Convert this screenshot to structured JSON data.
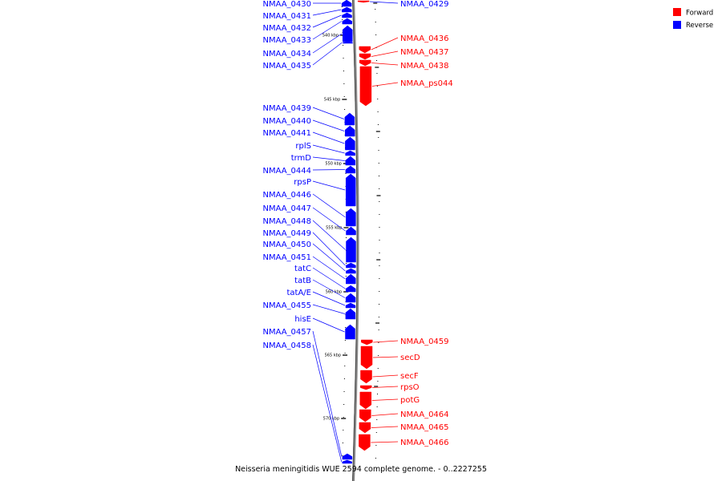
{
  "colors": {
    "forward": "#ff0000",
    "reverse": "#0000ff"
  },
  "legend": [
    {
      "name": "Forward",
      "color": "#ff0000"
    },
    {
      "name": "Reverse",
      "color": "#0000ff"
    }
  ],
  "caption": "Neisseria meningitidis WUE 2594 complete genome. - 0..2227255",
  "ticks": [
    "540 kbp",
    "545 kbp",
    "550 kbp",
    "555 kbp",
    "560 kbp",
    "565 kbp",
    "570 kbp"
  ],
  "reverse_genes": [
    {
      "name": "NMAA_0430"
    },
    {
      "name": "NMAA_0431"
    },
    {
      "name": "NMAA_0432"
    },
    {
      "name": "NMAA_0433"
    },
    {
      "name": "NMAA_0434"
    },
    {
      "name": "NMAA_0435"
    },
    {
      "name": "NMAA_0439"
    },
    {
      "name": "NMAA_0440"
    },
    {
      "name": "NMAA_0441"
    },
    {
      "name": "rplS"
    },
    {
      "name": "trmD"
    },
    {
      "name": "NMAA_0444"
    },
    {
      "name": "rpsP"
    },
    {
      "name": "NMAA_0446"
    },
    {
      "name": "NMAA_0447"
    },
    {
      "name": "NMAA_0448"
    },
    {
      "name": "NMAA_0449"
    },
    {
      "name": "NMAA_0450"
    },
    {
      "name": "NMAA_0451"
    },
    {
      "name": "tatC"
    },
    {
      "name": "tatB"
    },
    {
      "name": "tatA/E"
    },
    {
      "name": "NMAA_0455"
    },
    {
      "name": "hisE"
    },
    {
      "name": "NMAA_0457"
    },
    {
      "name": "NMAA_0458"
    }
  ],
  "forward_genes": [
    {
      "name": "NMAA_0429"
    },
    {
      "name": "NMAA_0436"
    },
    {
      "name": "NMAA_0437"
    },
    {
      "name": "NMAA_0438"
    },
    {
      "name": "NMAA_ps044"
    },
    {
      "name": "NMAA_0459"
    },
    {
      "name": "secD"
    },
    {
      "name": "secF"
    },
    {
      "name": "rpsO"
    },
    {
      "name": "potG"
    },
    {
      "name": "NMAA_0464"
    },
    {
      "name": "NMAA_0465"
    },
    {
      "name": "NMAA_0466"
    }
  ]
}
